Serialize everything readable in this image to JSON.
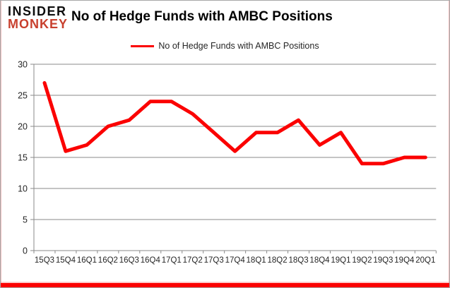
{
  "logo": {
    "line1": "INSIDER",
    "line2": "MONKEY"
  },
  "header": {
    "title": "No of Hedge Funds with AMBC Positions"
  },
  "legend": {
    "label": "No of Hedge Funds with AMBC Positions"
  },
  "colors": {
    "line": "#fb0000",
    "grid": "#8a8a8a",
    "axis": "#8a8a8a",
    "axis_text": "#262626",
    "title_text": "#000000",
    "logo_black": "#0d0d0d",
    "logo_red": "#c8402e",
    "bottom_bar": "#fb0000"
  },
  "chart_data": {
    "type": "line",
    "categories": [
      "15Q3",
      "15Q4",
      "16Q1",
      "16Q2",
      "16Q3",
      "16Q4",
      "17Q1",
      "17Q2",
      "17Q3",
      "17Q4",
      "18Q1",
      "18Q2",
      "18Q3",
      "18Q4",
      "19Q1",
      "19Q2",
      "19Q3",
      "19Q4",
      "20Q1"
    ],
    "series": [
      {
        "name": "No of Hedge Funds with AMBC Positions",
        "values": [
          27,
          16,
          17,
          20,
          21,
          24,
          24,
          22,
          19,
          16,
          19,
          19,
          21,
          17,
          19,
          14,
          14,
          15,
          15
        ]
      }
    ],
    "title": "No of Hedge Funds with AMBC Positions",
    "xlabel": "",
    "ylabel": "",
    "ylim": [
      0,
      30
    ],
    "yticks": [
      0,
      5,
      10,
      15,
      20,
      25,
      30
    ],
    "grid": true,
    "legend_position": "top-center"
  }
}
